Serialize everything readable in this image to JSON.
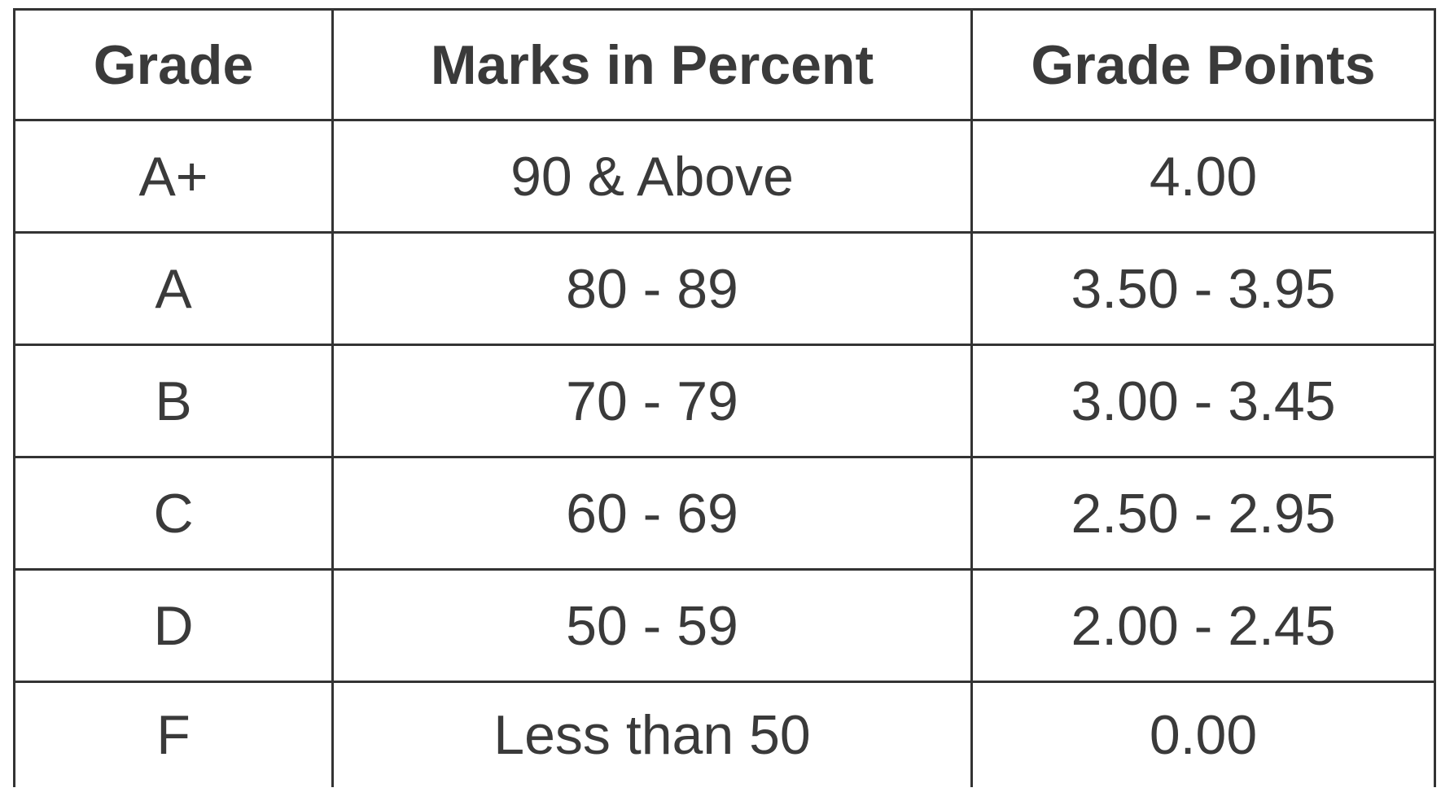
{
  "table": {
    "header": [
      "Grade",
      "Marks in Percent",
      "Grade Points"
    ],
    "rows": [
      [
        "A+",
        "90 & Above",
        "4.00"
      ],
      [
        "A",
        "80 - 89",
        "3.50 - 3.95"
      ],
      [
        "B",
        "70 - 79",
        "3.00 - 3.45"
      ],
      [
        "C",
        "60 - 69",
        "2.50 - 2.95"
      ],
      [
        "D",
        "50 - 59",
        "2.00 - 2.45"
      ],
      [
        "F",
        "Less than 50",
        "0.00"
      ]
    ]
  }
}
